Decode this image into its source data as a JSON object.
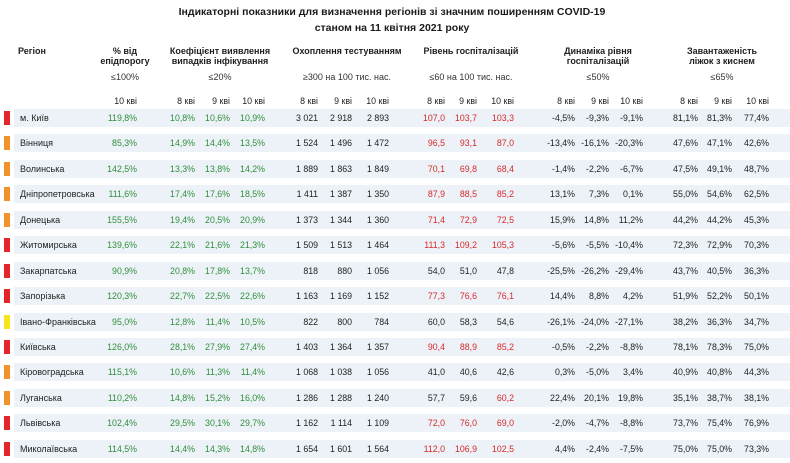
{
  "title": {
    "line1": "Індикаторні показники для визначення регіонів зі значним поширенням COVID-19",
    "line2": "станом на 11 квітня 2021 року"
  },
  "header": {
    "region": "Регіон",
    "epid_threshold": {
      "label_lines": [
        "% від",
        "епідпорогу"
      ],
      "threshold": "≤100%",
      "dates": [
        "10 кві"
      ]
    },
    "detection_rate": {
      "label_lines": [
        "Коефіцієнт виявлення",
        "випадків інфікування"
      ],
      "threshold": "≤20%",
      "dates": [
        "8 кві",
        "9 кві",
        "10 кві"
      ]
    },
    "testing_coverage": {
      "label_lines": [
        "Охоплення тестуванням"
      ],
      "threshold": "≥300 на 100 тис. нас.",
      "dates": [
        "8 кві",
        "9 кві",
        "10 кві"
      ]
    },
    "hospitalization": {
      "label_lines": [
        "Рівень госпіталізацій"
      ],
      "threshold": "≤60 на 100 тис. нас.",
      "dates": [
        "8 кві",
        "9 кві",
        "10 кві"
      ]
    },
    "hospitalization_dynamics": {
      "label_lines": [
        "Динаміка рівня",
        "госпіталізацій"
      ],
      "threshold": "≤50%",
      "dates": [
        "8 кві",
        "9 кві",
        "10 кві"
      ]
    },
    "oxygen_bed_load": {
      "label_lines": [
        "Завантаженість",
        "ліжок з киснем"
      ],
      "threshold": "≤65%",
      "dates": [
        "8 кві",
        "9 кві",
        "10 кві"
      ]
    }
  },
  "colors": {
    "good_text": "#2f8f3a",
    "alert_text": "#d42a2a",
    "red": "#e4262b",
    "orange": "#f3922a",
    "yellow": "#f6e51c"
  },
  "rows": [
    {
      "indicator_color": "#e4262b",
      "region": "м. Київ",
      "epid_threshold": "119,8%",
      "detection_rate": [
        "10,8%",
        "10,6%",
        "10,9%"
      ],
      "testing_coverage": [
        "3 021",
        "2 918",
        "2 893"
      ],
      "hospitalization": [
        "107,0",
        "103,7",
        "103,3"
      ],
      "hospitalization_dynamics": [
        "-4,5%",
        "-9,3%",
        "-9,1%"
      ],
      "oxygen_bed_load": [
        "81,1%",
        "81,3%",
        "77,4%"
      ]
    },
    {
      "indicator_color": "#f3922a",
      "region": "Вінниця",
      "epid_threshold": "85,3%",
      "detection_rate": [
        "14,9%",
        "14,4%",
        "13,5%"
      ],
      "testing_coverage": [
        "1 524",
        "1 496",
        "1 472"
      ],
      "hospitalization": [
        "96,5",
        "93,1",
        "87,0"
      ],
      "hospitalization_dynamics": [
        "-13,4%",
        "-16,1%",
        "-20,3%"
      ],
      "oxygen_bed_load": [
        "47,6%",
        "47,1%",
        "42,6%"
      ]
    },
    {
      "indicator_color": "#f3922a",
      "region": "Волинська",
      "epid_threshold": "142,5%",
      "detection_rate": [
        "13,3%",
        "13,8%",
        "14,2%"
      ],
      "testing_coverage": [
        "1 889",
        "1 863",
        "1 849"
      ],
      "hospitalization": [
        "70,1",
        "69,8",
        "68,4"
      ],
      "hospitalization_dynamics": [
        "-1,4%",
        "-2,2%",
        "-6,7%"
      ],
      "oxygen_bed_load": [
        "47,5%",
        "49,1%",
        "48,7%"
      ]
    },
    {
      "indicator_color": "#f3922a",
      "region": "Дніпропетровська",
      "epid_threshold": "111,6%",
      "detection_rate": [
        "17,4%",
        "17,6%",
        "18,5%"
      ],
      "testing_coverage": [
        "1 411",
        "1 387",
        "1 350"
      ],
      "hospitalization": [
        "87,9",
        "88,5",
        "85,2"
      ],
      "hospitalization_dynamics": [
        "13,1%",
        "7,3%",
        "0,1%"
      ],
      "oxygen_bed_load": [
        "55,0%",
        "54,6%",
        "62,5%"
      ]
    },
    {
      "indicator_color": "#f3922a",
      "region": "Донецька",
      "epid_threshold": "155,5%",
      "detection_rate": [
        "19,4%",
        "20,5%",
        "20,9%"
      ],
      "testing_coverage": [
        "1 373",
        "1 344",
        "1 360"
      ],
      "hospitalization": [
        "71,4",
        "72,9",
        "72,5"
      ],
      "hospitalization_dynamics": [
        "15,9%",
        "14,8%",
        "11,2%"
      ],
      "oxygen_bed_load": [
        "44,2%",
        "44,2%",
        "45,3%"
      ]
    },
    {
      "indicator_color": "#e4262b",
      "region": "Житомирська",
      "epid_threshold": "139,6%",
      "detection_rate": [
        "22,1%",
        "21,6%",
        "21,3%"
      ],
      "testing_coverage": [
        "1 509",
        "1 513",
        "1 464"
      ],
      "hospitalization": [
        "111,3",
        "109,2",
        "105,3"
      ],
      "hospitalization_dynamics": [
        "-5,6%",
        "-5,5%",
        "-10,4%"
      ],
      "oxygen_bed_load": [
        "72,3%",
        "72,9%",
        "70,3%"
      ]
    },
    {
      "indicator_color": "#e4262b",
      "region": "Закарпатська",
      "epid_threshold": "90,9%",
      "detection_rate": [
        "20,8%",
        "17,8%",
        "13,7%"
      ],
      "testing_coverage": [
        "818",
        "880",
        "1 056"
      ],
      "hospitalization": [
        "54,0",
        "51,0",
        "47,8"
      ],
      "hospitalization_dynamics": [
        "-25,5%",
        "-26,2%",
        "-29,4%"
      ],
      "oxygen_bed_load": [
        "43,7%",
        "40,5%",
        "36,3%"
      ]
    },
    {
      "indicator_color": "#e4262b",
      "region": "Запорізька",
      "epid_threshold": "120,3%",
      "detection_rate": [
        "22,7%",
        "22,5%",
        "22,6%"
      ],
      "testing_coverage": [
        "1 163",
        "1 169",
        "1 152"
      ],
      "hospitalization": [
        "77,3",
        "76,6",
        "76,1"
      ],
      "hospitalization_dynamics": [
        "14,4%",
        "8,8%",
        "4,2%"
      ],
      "oxygen_bed_load": [
        "51,9%",
        "52,2%",
        "50,1%"
      ]
    },
    {
      "indicator_color": "#f6e51c",
      "region": "Івано-Франківська",
      "epid_threshold": "95,0%",
      "detection_rate": [
        "12,8%",
        "11,4%",
        "10,5%"
      ],
      "testing_coverage": [
        "822",
        "800",
        "784"
      ],
      "hospitalization": [
        "60,0",
        "58,3",
        "54,6"
      ],
      "hospitalization_dynamics": [
        "-26,1%",
        "-24,0%",
        "-27,1%"
      ],
      "oxygen_bed_load": [
        "38,2%",
        "36,3%",
        "34,7%"
      ]
    },
    {
      "indicator_color": "#e4262b",
      "region": "Київська",
      "epid_threshold": "126,0%",
      "detection_rate": [
        "28,1%",
        "27,9%",
        "27,4%"
      ],
      "testing_coverage": [
        "1 403",
        "1 364",
        "1 357"
      ],
      "hospitalization": [
        "90,4",
        "88,9",
        "85,2"
      ],
      "hospitalization_dynamics": [
        "-0,5%",
        "-2,2%",
        "-8,8%"
      ],
      "oxygen_bed_load": [
        "78,1%",
        "78,3%",
        "75,0%"
      ]
    },
    {
      "indicator_color": "#f3922a",
      "region": "Кіровоградська",
      "epid_threshold": "115,1%",
      "detection_rate": [
        "10,6%",
        "11,3%",
        "11,4%"
      ],
      "testing_coverage": [
        "1 068",
        "1 038",
        "1 056"
      ],
      "hospitalization": [
        "41,0",
        "40,6",
        "42,6"
      ],
      "hospitalization_dynamics": [
        "0,3%",
        "-5,0%",
        "3,4%"
      ],
      "oxygen_bed_load": [
        "40,9%",
        "40,8%",
        "44,3%"
      ]
    },
    {
      "indicator_color": "#f3922a",
      "region": "Луганська",
      "epid_threshold": "110,2%",
      "detection_rate": [
        "14,8%",
        "15,2%",
        "16,0%"
      ],
      "testing_coverage": [
        "1 286",
        "1 288",
        "1 240"
      ],
      "hospitalization": [
        "57,7",
        "59,6",
        "60,2"
      ],
      "hospitalization_dynamics": [
        "22,4%",
        "20,1%",
        "19,8%"
      ],
      "oxygen_bed_load": [
        "35,1%",
        "38,7%",
        "38,1%"
      ]
    },
    {
      "indicator_color": "#e4262b",
      "region": "Львівська",
      "epid_threshold": "102,4%",
      "detection_rate": [
        "29,5%",
        "30,1%",
        "29,7%"
      ],
      "testing_coverage": [
        "1 162",
        "1 114",
        "1 109"
      ],
      "hospitalization": [
        "72,0",
        "76,0",
        "69,0"
      ],
      "hospitalization_dynamics": [
        "-2,0%",
        "-4,7%",
        "-8,8%"
      ],
      "oxygen_bed_load": [
        "73,7%",
        "75,4%",
        "76,9%"
      ]
    },
    {
      "indicator_color": "#e4262b",
      "region": "Миколаївська",
      "epid_threshold": "114,5%",
      "detection_rate": [
        "14,4%",
        "14,3%",
        "14,8%"
      ],
      "testing_coverage": [
        "1 654",
        "1 601",
        "1 564"
      ],
      "hospitalization": [
        "112,0",
        "106,9",
        "102,5"
      ],
      "hospitalization_dynamics": [
        "4,4%",
        "-2,4%",
        "-7,5%"
      ],
      "oxygen_bed_load": [
        "75,0%",
        "75,0%",
        "73,3%"
      ]
    }
  ]
}
